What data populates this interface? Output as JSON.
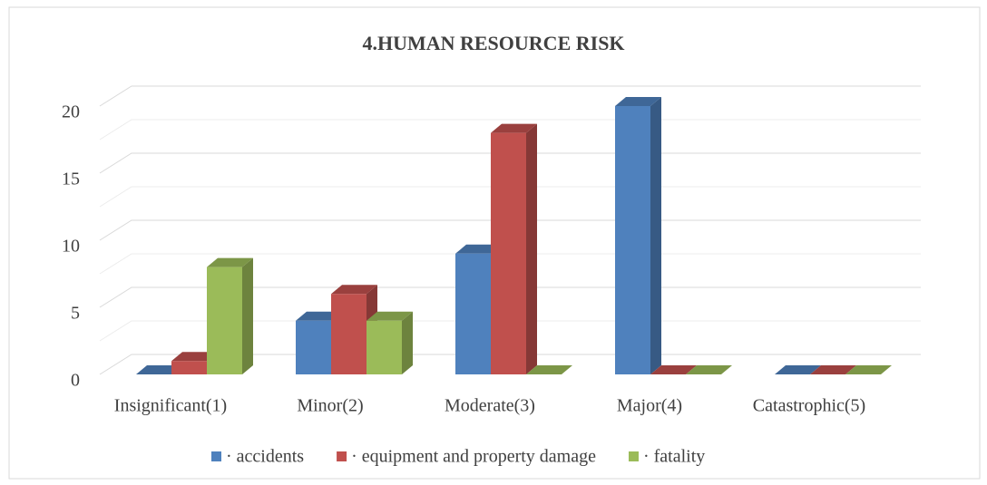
{
  "chart_data": {
    "type": "bar3d",
    "title": "4.HUMAN RESOURCE  RISK",
    "categories": [
      "Insignificant(1)",
      "Minor(2)",
      "Moderate(3)",
      "Major(4)",
      "Catastrophic(5)"
    ],
    "series": [
      {
        "name": "· accidents",
        "color": "#4f81bd",
        "values": [
          0,
          4,
          9,
          20,
          0
        ]
      },
      {
        "name": "· equipment and property damage",
        "color": "#c0504d",
        "values": [
          1,
          6,
          18,
          0,
          0
        ]
      },
      {
        "name": "· fatality",
        "color": "#9bbb59",
        "values": [
          8,
          4,
          0,
          0,
          0
        ]
      }
    ],
    "ylim": [
      0,
      20
    ],
    "yticks": [
      0,
      5,
      10,
      15,
      20
    ],
    "grid": true,
    "legend": "bottom"
  }
}
